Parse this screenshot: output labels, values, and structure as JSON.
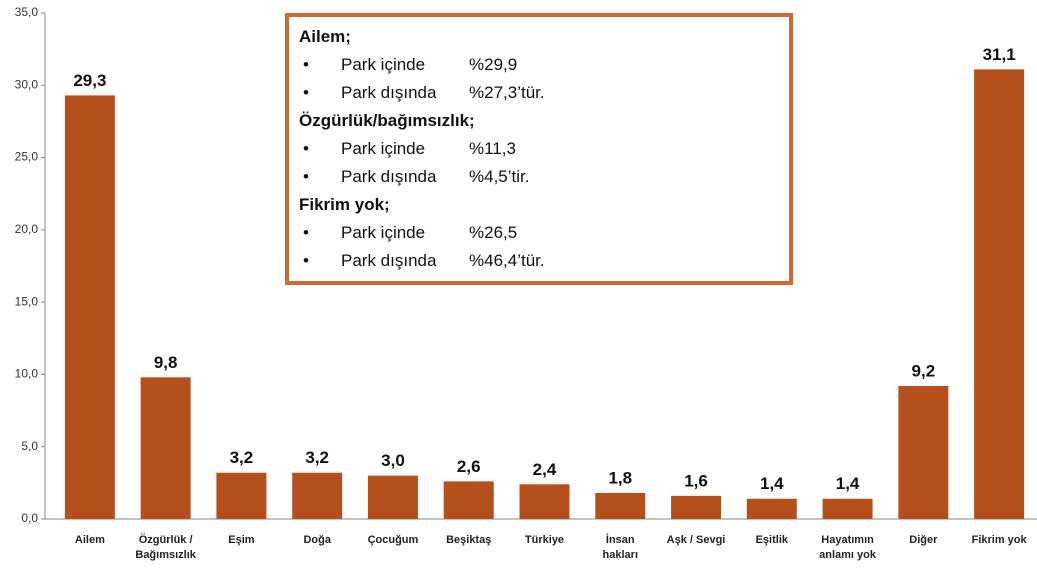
{
  "chart_data": {
    "type": "bar",
    "categories": [
      "Ailem",
      "Özgürlük /\nBağımsızlık",
      "Eşim",
      "Doğa",
      "Çocuğum",
      "Beşiktaş",
      "Türkiye",
      "İnsan\nhakları",
      "Aşk / Sevgi",
      "Eşitlik",
      "Hayatımın\nanlamı yok",
      "Diğer",
      "Fikrim yok"
    ],
    "values": [
      29.3,
      9.8,
      3.2,
      3.2,
      3.0,
      2.6,
      2.4,
      1.8,
      1.6,
      1.4,
      1.4,
      9.2,
      31.1
    ],
    "value_labels": [
      "29,3",
      "9,8",
      "3,2",
      "3,2",
      "3,0",
      "2,6",
      "2,4",
      "1,8",
      "1,6",
      "1,4",
      "1,4",
      "9,2",
      "31,1"
    ],
    "color": "#b5501c",
    "ylim": [
      0,
      35
    ],
    "yticks": [
      {
        "value": 0,
        "label": "0,0"
      },
      {
        "value": 5,
        "label": "5,0"
      },
      {
        "value": 10,
        "label": "10,0"
      },
      {
        "value": 15,
        "label": "15,0"
      },
      {
        "value": 20,
        "label": "20,0"
      },
      {
        "value": 25,
        "label": "25,0"
      },
      {
        "value": 30,
        "label": "30,0"
      },
      {
        "value": 35,
        "label": "35,0"
      }
    ],
    "grid": false,
    "annotation": [
      {
        "heading": "Ailem;",
        "items": [
          {
            "label": "Park içinde",
            "value": "%29,9"
          },
          {
            "label": "Park dışında",
            "value": "%27,3’tür."
          }
        ]
      },
      {
        "heading": "Özgürlük/bağımsızlık;",
        "items": [
          {
            "label": "Park içinde",
            "value": "%11,3"
          },
          {
            "label": "Park dışında",
            "value": "%4,5’tir."
          }
        ]
      },
      {
        "heading": "Fikrim yok;",
        "items": [
          {
            "label": "Park içinde",
            "value": "%26,5"
          },
          {
            "label": "Park dışında",
            "value": "%46,4’tür."
          }
        ]
      }
    ]
  }
}
